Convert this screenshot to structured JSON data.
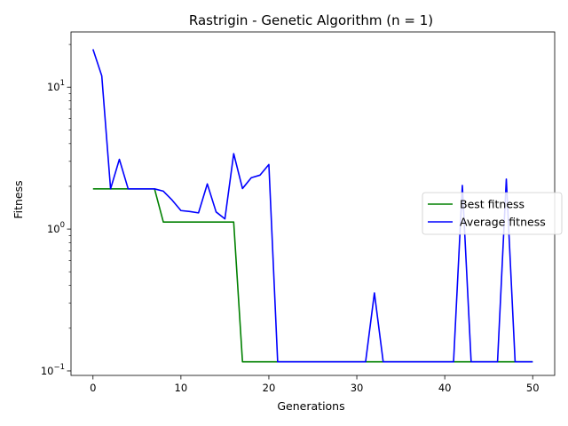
{
  "chart_data": {
    "type": "line",
    "title": "Rastrigin - Genetic Algorithm (n = 1)",
    "xlabel": "Generations",
    "ylabel": "Fitness",
    "yscale": "log",
    "xlim": [
      -2.5,
      52.5
    ],
    "ylim": [
      0.093,
      24.5
    ],
    "x_ticks": [
      0,
      10,
      20,
      30,
      40,
      50
    ],
    "y_ticks": [
      {
        "value": 0.1,
        "base": "10",
        "exp": "−1"
      },
      {
        "value": 1,
        "base": "10",
        "exp": "0"
      },
      {
        "value": 10,
        "base": "10",
        "exp": "1"
      }
    ],
    "legend_position": "center-right",
    "x": [
      0,
      1,
      2,
      3,
      4,
      5,
      6,
      7,
      8,
      9,
      10,
      11,
      12,
      13,
      14,
      15,
      16,
      17,
      18,
      19,
      20,
      21,
      22,
      23,
      24,
      25,
      26,
      27,
      28,
      29,
      30,
      31,
      32,
      33,
      34,
      35,
      36,
      37,
      38,
      39,
      40,
      41,
      42,
      43,
      44,
      45,
      46,
      47,
      48,
      49,
      50
    ],
    "series": [
      {
        "name": "Best fitness",
        "color": "#008000",
        "values": [
          1.92,
          1.92,
          1.92,
          1.92,
          1.92,
          1.92,
          1.92,
          1.92,
          1.12,
          1.12,
          1.12,
          1.12,
          1.12,
          1.12,
          1.12,
          1.12,
          1.12,
          0.116,
          0.116,
          0.116,
          0.116,
          0.116,
          0.116,
          0.116,
          0.116,
          0.116,
          0.116,
          0.116,
          0.116,
          0.116,
          0.116,
          0.116,
          0.116,
          0.116,
          0.116,
          0.116,
          0.116,
          0.116,
          0.116,
          0.116,
          0.116,
          0.116,
          0.116,
          0.116,
          0.116,
          0.116,
          0.116,
          0.116,
          0.116,
          0.116,
          0.116
        ]
      },
      {
        "name": "Average fitness",
        "color": "#0000ff",
        "values": [
          18.5,
          12.0,
          1.92,
          3.1,
          1.92,
          1.92,
          1.92,
          1.92,
          1.85,
          1.6,
          1.35,
          1.33,
          1.3,
          2.08,
          1.32,
          1.18,
          3.4,
          1.93,
          2.3,
          2.4,
          2.85,
          0.116,
          0.116,
          0.116,
          0.116,
          0.116,
          0.116,
          0.116,
          0.116,
          0.116,
          0.116,
          0.116,
          0.355,
          0.116,
          0.116,
          0.116,
          0.116,
          0.116,
          0.116,
          0.116,
          0.116,
          0.116,
          2.03,
          0.116,
          0.116,
          0.116,
          0.116,
          2.25,
          0.116,
          0.116,
          0.116
        ]
      }
    ]
  }
}
